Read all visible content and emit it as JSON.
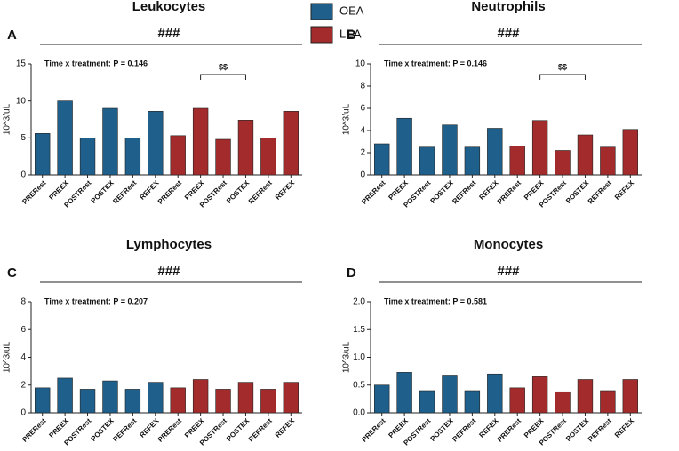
{
  "chart_data": [
    {
      "type": "bar",
      "panel": "A",
      "title": "Leukocytes",
      "significance": "###",
      "annotation": "Time x treatment:  P = 0.146",
      "bracket_label": "$$",
      "ylabel": "10^3/uL",
      "categories": [
        "PRERest",
        "PREEX",
        "POSTRest",
        "POSTEX",
        "REFRest",
        "REFEX",
        "PRERest",
        "PREEX",
        "POSTRest",
        "POSTEX",
        "REFRest",
        "REFEX"
      ],
      "series": [
        {
          "name": "OEA",
          "color": "#1f5f8b",
          "values": [
            5.6,
            10,
            5,
            9,
            5,
            8.6,
            null,
            null,
            null,
            null,
            null,
            null
          ]
        },
        {
          "name": "LEA",
          "color": "#a32b2b",
          "values": [
            null,
            null,
            null,
            null,
            null,
            null,
            5.3,
            9,
            4.8,
            7.4,
            5,
            8.6
          ]
        }
      ],
      "ylim": [
        0,
        15
      ],
      "yticks": [
        0,
        5,
        10,
        15
      ]
    },
    {
      "type": "bar",
      "panel": "B",
      "title": "Neutrophils",
      "significance": "###",
      "annotation": "Time x treatment:  P = 0.146",
      "bracket_label": "$$",
      "ylabel": "10^3/uL",
      "categories": [
        "PRERest",
        "PREEX",
        "POSTRest",
        "POSTEX",
        "REFRest",
        "REFEX",
        "PRERest",
        "PREEX",
        "POSTRest",
        "POSTEX",
        "REFRest",
        "REFEX"
      ],
      "series": [
        {
          "name": "OEA",
          "color": "#1f5f8b",
          "values": [
            2.8,
            5.1,
            2.5,
            4.5,
            2.5,
            4.2,
            null,
            null,
            null,
            null,
            null,
            null
          ]
        },
        {
          "name": "LEA",
          "color": "#a32b2b",
          "values": [
            null,
            null,
            null,
            null,
            null,
            null,
            2.6,
            4.9,
            2.2,
            3.6,
            2.5,
            4.1
          ]
        }
      ],
      "ylim": [
        0,
        10
      ],
      "yticks": [
        0,
        2,
        4,
        6,
        8,
        10
      ]
    },
    {
      "type": "bar",
      "panel": "C",
      "title": "Lymphocytes",
      "significance": "###",
      "annotation": "Time x treatment:  P = 0.207",
      "ylabel": "10^3/uL",
      "categories": [
        "PRERest",
        "PREEX",
        "POSTRest",
        "POSTEX",
        "REFRest",
        "REFEX",
        "PRERest",
        "PREEX",
        "POSTRest",
        "POSTEX",
        "REFRest",
        "REFEX"
      ],
      "series": [
        {
          "name": "OEA",
          "color": "#1f5f8b",
          "values": [
            1.8,
            2.5,
            1.7,
            2.3,
            1.7,
            2.2,
            null,
            null,
            null,
            null,
            null,
            null
          ]
        },
        {
          "name": "LEA",
          "color": "#a32b2b",
          "values": [
            null,
            null,
            null,
            null,
            null,
            null,
            1.8,
            2.4,
            1.7,
            2.2,
            1.7,
            2.2
          ]
        }
      ],
      "ylim": [
        0,
        8
      ],
      "yticks": [
        0,
        2,
        4,
        6,
        8
      ]
    },
    {
      "type": "bar",
      "panel": "D",
      "title": "Monocytes",
      "significance": "###",
      "annotation": "Time x treatment:  P = 0.581",
      "ylabel": "10^3/uL",
      "categories": [
        "PRERest",
        "PREEX",
        "POSTRest",
        "POSTEX",
        "REFRest",
        "REFEX",
        "PRERest",
        "PREEX",
        "POSTRest",
        "POSTEX",
        "REFRest",
        "REFEX"
      ],
      "series": [
        {
          "name": "OEA",
          "color": "#1f5f8b",
          "values": [
            0.5,
            0.73,
            0.4,
            0.68,
            0.4,
            0.7,
            null,
            null,
            null,
            null,
            null,
            null
          ]
        },
        {
          "name": "LEA",
          "color": "#a32b2b",
          "values": [
            null,
            null,
            null,
            null,
            null,
            null,
            0.45,
            0.65,
            0.38,
            0.6,
            0.4,
            0.6
          ]
        }
      ],
      "ylim": [
        0,
        2
      ],
      "yticks": [
        {
          "value": 0,
          "label": "0.0"
        },
        0.5,
        {
          "value": 1,
          "label": "1.0"
        },
        1.5,
        {
          "value": 2,
          "label": "2.0"
        }
      ]
    }
  ]
}
